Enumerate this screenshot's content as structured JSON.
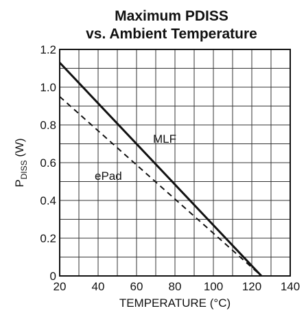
{
  "chart_data": {
    "type": "line",
    "title": "Maximum PDISS",
    "subtitle": "vs. Ambient Temperature",
    "xlabel": "TEMPERATURE (°C)",
    "ylabel": {
      "main": "P",
      "sub": "DISS",
      "unit": " (W)"
    },
    "xlim": [
      20,
      140
    ],
    "ylim": [
      0,
      1.2
    ],
    "x_ticks": [
      "20",
      "40",
      "60",
      "80",
      "100",
      "120",
      "140"
    ],
    "y_ticks": [
      "0",
      "0.2",
      "0.4",
      "0.6",
      "0.8",
      "1.0",
      "1.2"
    ],
    "grid": true,
    "series": [
      {
        "name": "MLF",
        "style": "solid",
        "color": "#111111",
        "x": [
          20,
          125
        ],
        "y": [
          1.13,
          0
        ]
      },
      {
        "name": "ePad",
        "style": "dashed",
        "color": "#111111",
        "x": [
          20,
          125
        ],
        "y": [
          0.95,
          0
        ]
      }
    ]
  }
}
